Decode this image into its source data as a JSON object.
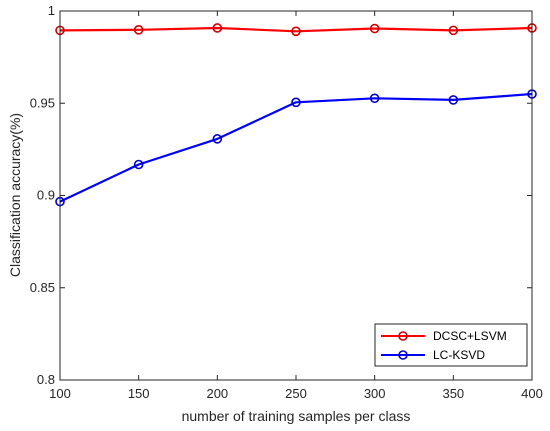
{
  "chart_data": {
    "type": "line",
    "x": [
      100,
      150,
      200,
      250,
      300,
      350,
      400
    ],
    "xlabel": "number of training samples per class",
    "ylabel": "Classification accuracy(%)",
    "xlim": [
      100,
      400
    ],
    "ylim": [
      0.8,
      1.0
    ],
    "xticks": [
      "100",
      "150",
      "200",
      "250",
      "300",
      "350",
      "400"
    ],
    "yticks": [
      "0.8",
      "0.85",
      "0.9",
      "0.95",
      "1"
    ],
    "grid": false,
    "legend_position": "bottom-right",
    "series": [
      {
        "name": "DCSC+LSVM",
        "color": "#ff0000",
        "marker_edge": "#cc0000",
        "values": [
          0.9895,
          0.9898,
          0.9908,
          0.989,
          0.9905,
          0.9895,
          0.9908
        ]
      },
      {
        "name": "LC-KSVD",
        "color": "#0000ff",
        "marker_edge": "#0000cc",
        "values": [
          0.8967,
          0.9168,
          0.9307,
          0.9505,
          0.9527,
          0.9518,
          0.955
        ]
      }
    ]
  }
}
